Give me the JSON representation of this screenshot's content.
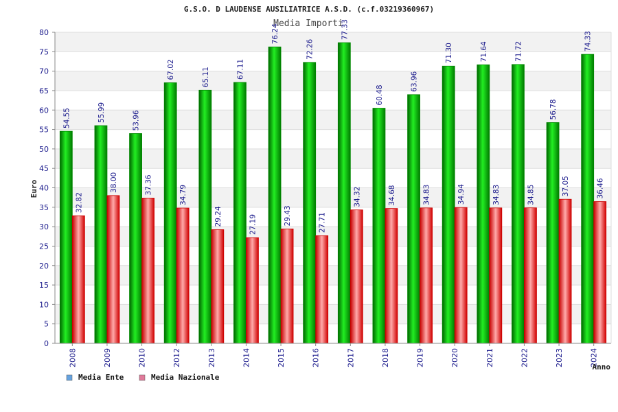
{
  "chart_data": {
    "type": "bar",
    "title": "G.S.O. D LAUDENSE AUSILIATRICE A.S.D. (c.f.03219360967)",
    "subtitle": "Media Importi",
    "xlabel": "Anno",
    "ylabel": "Euro",
    "ylim": [
      0,
      80
    ],
    "ytick_step": 5,
    "grid": true,
    "legend_position": "bottom-left",
    "categories": [
      "2008",
      "2009",
      "2010",
      "2012",
      "2013",
      "2014",
      "2015",
      "2016",
      "2017",
      "2018",
      "2019",
      "2020",
      "2021",
      "2022",
      "2023",
      "2024"
    ],
    "series": [
      {
        "name": "Media Ente",
        "color": "#00c000",
        "legend_color": "#66a3e0",
        "values": [
          54.55,
          55.99,
          53.96,
          67.02,
          65.11,
          67.11,
          76.24,
          72.26,
          77.33,
          60.48,
          63.96,
          71.3,
          71.64,
          71.72,
          56.78,
          74.33
        ],
        "labels": [
          "54.55",
          "55.99",
          "53.96",
          "67.02",
          "65.11",
          "67.11",
          "76.24",
          "72.26",
          "77.33",
          "60.48",
          "63.96",
          "71.30",
          "71.64",
          "71.72",
          "56.78",
          "74.33"
        ]
      },
      {
        "name": "Media Nazionale",
        "color": "#e81010",
        "legend_color": "#e07a9a",
        "values": [
          32.82,
          38.0,
          37.36,
          34.79,
          29.24,
          27.19,
          29.43,
          27.71,
          34.32,
          34.68,
          34.83,
          34.94,
          34.83,
          34.85,
          37.05,
          36.46
        ],
        "labels": [
          "32.82",
          "38.00",
          "37.36",
          "34.79",
          "29.24",
          "27.19",
          "29.43",
          "27.71",
          "34.32",
          "34.68",
          "34.83",
          "34.94",
          "34.83",
          "34.85",
          "37.05",
          "36.46"
        ]
      }
    ]
  }
}
